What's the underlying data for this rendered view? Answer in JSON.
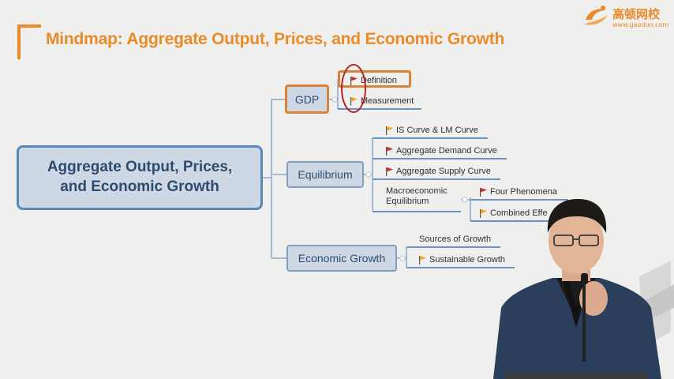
{
  "title": "Mindmap: Aggregate Output, Prices, and Economic Growth",
  "logo": {
    "name": "高顿网校",
    "url": "www.gaodun.com"
  },
  "root": {
    "line1": "Aggregate Output, Prices,",
    "line2": "and Economic Growth"
  },
  "branches": {
    "gdp": {
      "label": "GDP",
      "items": [
        {
          "label": "Definition",
          "flag": "red-flag"
        },
        {
          "label": "Measurement",
          "flag": "yellow-flag"
        }
      ]
    },
    "equilibrium": {
      "label": "Equilibrium",
      "items": [
        {
          "label": "IS Curve & LM Curve",
          "flag": "yellow-flag"
        },
        {
          "label": "Aggregate Demand Curve",
          "flag": "red-flag"
        },
        {
          "label": "Aggregate Supply Curve",
          "flag": "red-flag"
        }
      ],
      "macro": {
        "line1": "Macroeconomic",
        "line2": "Equilibrium",
        "items": [
          {
            "label": "Four Phenomena",
            "flag": "red-flag"
          },
          {
            "label": "Combined Effe",
            "flag": "yellow-flag"
          }
        ]
      }
    },
    "growth": {
      "label": "Economic Growth",
      "items": [
        {
          "label": "Sources of Growth",
          "flag": ""
        },
        {
          "label": "Sustainable Growth",
          "flag": "yellow-flag"
        }
      ]
    }
  },
  "colors": {
    "accent": "#e98a2b",
    "flag_red": "#c9302c",
    "flag_yellow": "#f0a81c",
    "node_fill": "#ced8e4",
    "node_border": "#5b86b8",
    "annotation": "#b0282a"
  }
}
